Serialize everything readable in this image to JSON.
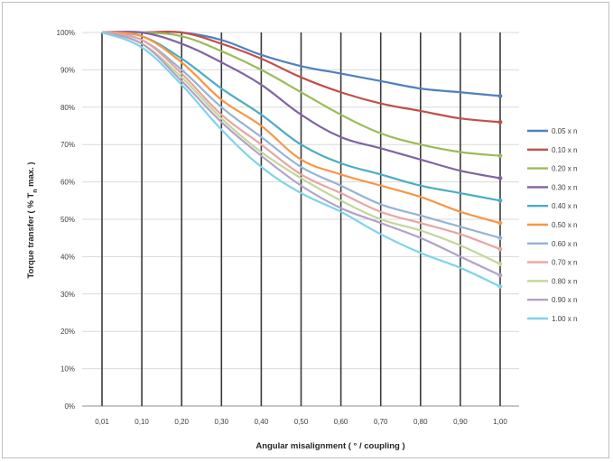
{
  "chart_data": {
    "type": "line",
    "title": "",
    "xlabel": "Angular misalignment ( ° / coupling )",
    "ylabel": "Torque transfer ( % T_n max. )",
    "ylabel_parts": {
      "before": "Torque  transfer  ( % T",
      "sub": "n",
      "after": " max. )"
    },
    "x": [
      "0,01",
      "0,10",
      "0,20",
      "0,30",
      "0,40",
      "0,50",
      "0,60",
      "0,70",
      "0,80",
      "0,90",
      "1,00"
    ],
    "y_ticks": [
      "0%",
      "10%",
      "20%",
      "30%",
      "40%",
      "50%",
      "60%",
      "70%",
      "80%",
      "90%",
      "100%"
    ],
    "ylim": [
      0,
      100
    ],
    "grid": "horizontal and vertical",
    "legend_position": "right",
    "series": [
      {
        "name": "0.05 x n",
        "color": "#4F81BD",
        "values": [
          100,
          100,
          100,
          98,
          94,
          91,
          89,
          87,
          85,
          84,
          83
        ]
      },
      {
        "name": "0.10 x n",
        "color": "#C0504D",
        "values": [
          100,
          100,
          100,
          97,
          93,
          88,
          84,
          81,
          79,
          77,
          76
        ]
      },
      {
        "name": "0.20 x n",
        "color": "#9BBB59",
        "values": [
          100,
          100,
          99,
          95,
          90,
          84,
          78,
          73,
          70,
          68,
          67
        ]
      },
      {
        "name": "0.30 x n",
        "color": "#8064A2",
        "values": [
          100,
          100,
          97,
          92,
          86,
          78,
          72,
          69,
          66,
          63,
          61
        ]
      },
      {
        "name": "0.40 x n",
        "color": "#4BACC6",
        "values": [
          100,
          99,
          93,
          85,
          78,
          70,
          65,
          62,
          59,
          57,
          55
        ]
      },
      {
        "name": "0.50 x n",
        "color": "#F79646",
        "values": [
          100,
          99,
          92,
          82,
          75,
          66,
          62,
          59,
          56,
          52,
          49
        ]
      },
      {
        "name": "0.60 x n",
        "color": "#95B3D7",
        "values": [
          100,
          98,
          90,
          80,
          72,
          64,
          59,
          54,
          51,
          48,
          45
        ]
      },
      {
        "name": "0.70 x n",
        "color": "#E6A5A3",
        "values": [
          100,
          98,
          89,
          78,
          70,
          62,
          57,
          52,
          49,
          46,
          42
        ]
      },
      {
        "name": "0.80 x n",
        "color": "#C3D69B",
        "values": [
          100,
          97,
          88,
          77,
          68,
          61,
          55,
          50,
          47,
          43,
          38
        ]
      },
      {
        "name": "0.90 x n",
        "color": "#B3A2C7",
        "values": [
          100,
          97,
          87,
          76,
          67,
          59,
          53,
          49,
          45,
          40,
          35
        ]
      },
      {
        "name": "1.00 x n",
        "color": "#7FD3E8",
        "values": [
          100,
          96,
          86,
          74,
          64,
          57,
          52,
          46,
          41,
          37,
          32
        ]
      }
    ]
  }
}
